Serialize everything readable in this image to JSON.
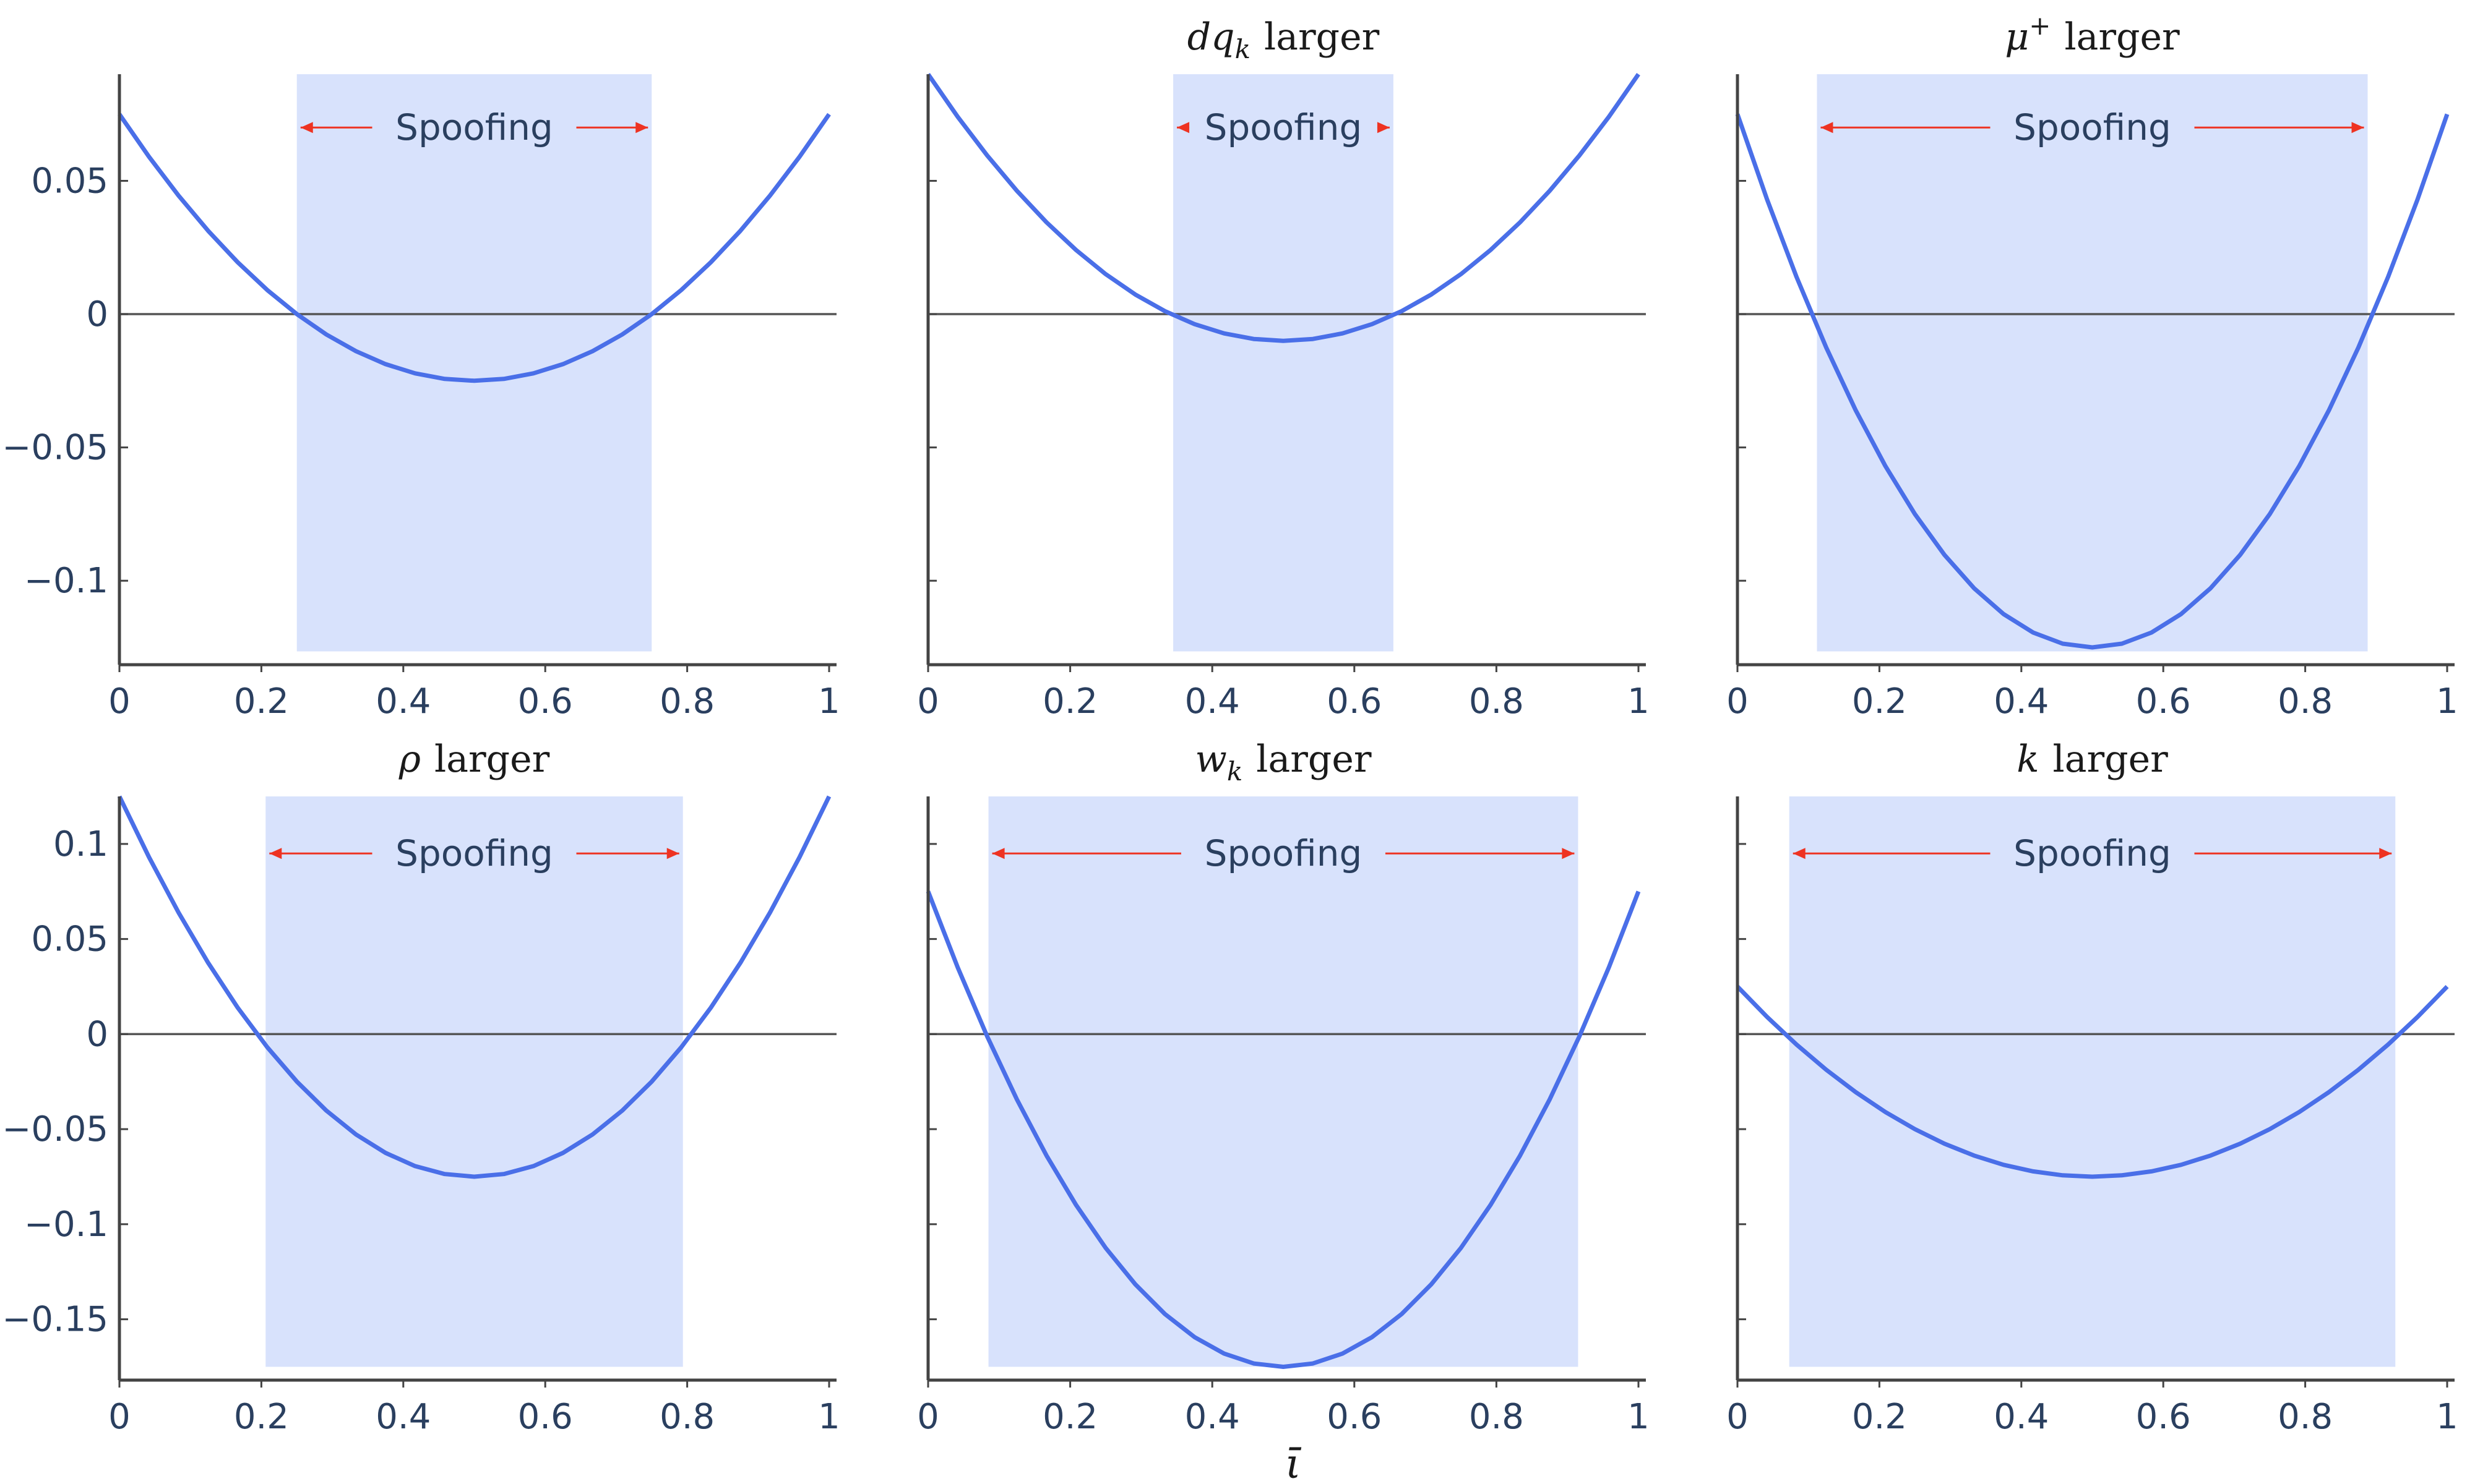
{
  "figure": {
    "xlabel": "ῑ",
    "colors": {
      "line": "#4a6fe8",
      "band": "#d8e2fc",
      "arrow": "#ee3322",
      "axis": "#444444",
      "zero_line": "#555555",
      "text": "#2a3f5f"
    }
  },
  "chart_data": [
    {
      "type": "line",
      "title": "",
      "xlabel": "",
      "ylabel": "",
      "xlim": [
        0,
        1
      ],
      "ylim": [
        -0.1315,
        0.09
      ],
      "y_ticks": [
        0.05,
        0,
        -0.05,
        -0.1
      ],
      "y_tick_labels": [
        "0.05",
        "0",
        "−0.05",
        "−0.1"
      ],
      "show_y_labels": true,
      "x_ticks": [
        0,
        0.2,
        0.4,
        0.6,
        0.8,
        1
      ],
      "x_tick_labels": [
        "0",
        "0.2",
        "0.4",
        "0.6",
        "0.8",
        "1"
      ],
      "grid": false,
      "zero_line": true,
      "curve": {
        "vertex_x": 0.5,
        "vertex_y": -0.025,
        "endpoint_y": 0.075
      },
      "band": {
        "x_start": 0.25,
        "x_end": 0.75,
        "y_bottom": -0.1265,
        "y_top": 0.09,
        "label": "Spoofing",
        "arrow_y": 0.07
      }
    },
    {
      "type": "line",
      "title": "dq",
      "title_sub": "k",
      "title_suffix": "larger",
      "xlabel": "",
      "ylabel": "",
      "xlim": [
        0,
        1
      ],
      "ylim": [
        -0.1315,
        0.09
      ],
      "y_ticks": [
        0.05,
        0,
        -0.05,
        -0.1
      ],
      "y_tick_labels": [
        "",
        "",
        "",
        ""
      ],
      "show_y_labels": false,
      "x_ticks": [
        0,
        0.2,
        0.4,
        0.6,
        0.8,
        1
      ],
      "x_tick_labels": [
        "0",
        "0.2",
        "0.4",
        "0.6",
        "0.8",
        "1"
      ],
      "grid": false,
      "zero_line": true,
      "curve": {
        "vertex_x": 0.5,
        "vertex_y": -0.01,
        "endpoint_y": 0.09
      },
      "band": {
        "x_start": 0.345,
        "x_end": 0.655,
        "y_bottom": -0.1265,
        "y_top": 0.09,
        "label": "Spoofing",
        "arrow_y": 0.07
      }
    },
    {
      "type": "line",
      "title": "μ",
      "title_sup": "+",
      "title_suffix": "larger",
      "xlabel": "",
      "ylabel": "",
      "xlim": [
        0,
        1
      ],
      "ylim": [
        -0.1315,
        0.09
      ],
      "y_ticks": [
        0.05,
        0,
        -0.05,
        -0.1
      ],
      "y_tick_labels": [
        "",
        "",
        "",
        ""
      ],
      "show_y_labels": false,
      "x_ticks": [
        0,
        0.2,
        0.4,
        0.6,
        0.8,
        1
      ],
      "x_tick_labels": [
        "0",
        "0.2",
        "0.4",
        "0.6",
        "0.8",
        "1"
      ],
      "grid": false,
      "zero_line": true,
      "curve": {
        "vertex_x": 0.5,
        "vertex_y": -0.125,
        "endpoint_y": 0.075
      },
      "band": {
        "x_start": 0.112,
        "x_end": 0.888,
        "y_bottom": -0.1265,
        "y_top": 0.09,
        "label": "Spoofing",
        "arrow_y": 0.07
      }
    },
    {
      "type": "line",
      "title": "ρ",
      "title_suffix": "larger",
      "xlabel": "",
      "ylabel": "",
      "xlim": [
        0,
        1
      ],
      "ylim": [
        -0.182,
        0.125
      ],
      "y_ticks": [
        0.1,
        0.05,
        0,
        -0.05,
        -0.1,
        -0.15
      ],
      "y_tick_labels": [
        "0.1",
        "0.05",
        "0",
        "−0.05",
        "−0.1",
        "−0.15"
      ],
      "show_y_labels": true,
      "x_ticks": [
        0,
        0.2,
        0.4,
        0.6,
        0.8,
        1
      ],
      "x_tick_labels": [
        "0",
        "0.2",
        "0.4",
        "0.6",
        "0.8",
        "1"
      ],
      "grid": false,
      "zero_line": true,
      "curve": {
        "vertex_x": 0.5,
        "vertex_y": -0.075,
        "endpoint_y": 0.125
      },
      "band": {
        "x_start": 0.206,
        "x_end": 0.794,
        "y_bottom": -0.175,
        "y_top": 0.125,
        "label": "Spoofing",
        "arrow_y": 0.095
      }
    },
    {
      "type": "line",
      "title": "w",
      "title_sub": "k",
      "title_suffix": "larger",
      "xlabel": "",
      "ylabel": "",
      "xlim": [
        0,
        1
      ],
      "ylim": [
        -0.182,
        0.125
      ],
      "y_ticks": [
        0.1,
        0.05,
        0,
        -0.05,
        -0.1,
        -0.15
      ],
      "y_tick_labels": [
        "",
        "",
        "",
        "",
        "",
        ""
      ],
      "show_y_labels": false,
      "x_ticks": [
        0,
        0.2,
        0.4,
        0.6,
        0.8,
        1
      ],
      "x_tick_labels": [
        "0",
        "0.2",
        "0.4",
        "0.6",
        "0.8",
        "1"
      ],
      "grid": false,
      "zero_line": true,
      "curve": {
        "vertex_x": 0.5,
        "vertex_y": -0.175,
        "endpoint_y": 0.075
      },
      "band": {
        "x_start": 0.085,
        "x_end": 0.915,
        "y_bottom": -0.175,
        "y_top": 0.125,
        "label": "Spoofing",
        "arrow_y": 0.095
      }
    },
    {
      "type": "line",
      "title": "k",
      "title_suffix": "larger",
      "xlabel": "",
      "ylabel": "",
      "xlim": [
        0,
        1
      ],
      "ylim": [
        -0.182,
        0.125
      ],
      "y_ticks": [
        0.1,
        0.05,
        0,
        -0.05,
        -0.1,
        -0.15
      ],
      "y_tick_labels": [
        "",
        "",
        "",
        "",
        "",
        ""
      ],
      "show_y_labels": false,
      "x_ticks": [
        0,
        0.2,
        0.4,
        0.6,
        0.8,
        1
      ],
      "x_tick_labels": [
        "0",
        "0.2",
        "0.4",
        "0.6",
        "0.8",
        "1"
      ],
      "grid": false,
      "zero_line": true,
      "curve": {
        "vertex_x": 0.5,
        "vertex_y": -0.075,
        "endpoint_y": 0.025
      },
      "band": {
        "x_start": 0.073,
        "x_end": 0.927,
        "y_bottom": -0.175,
        "y_top": 0.125,
        "label": "Spoofing",
        "arrow_y": 0.095
      }
    }
  ]
}
